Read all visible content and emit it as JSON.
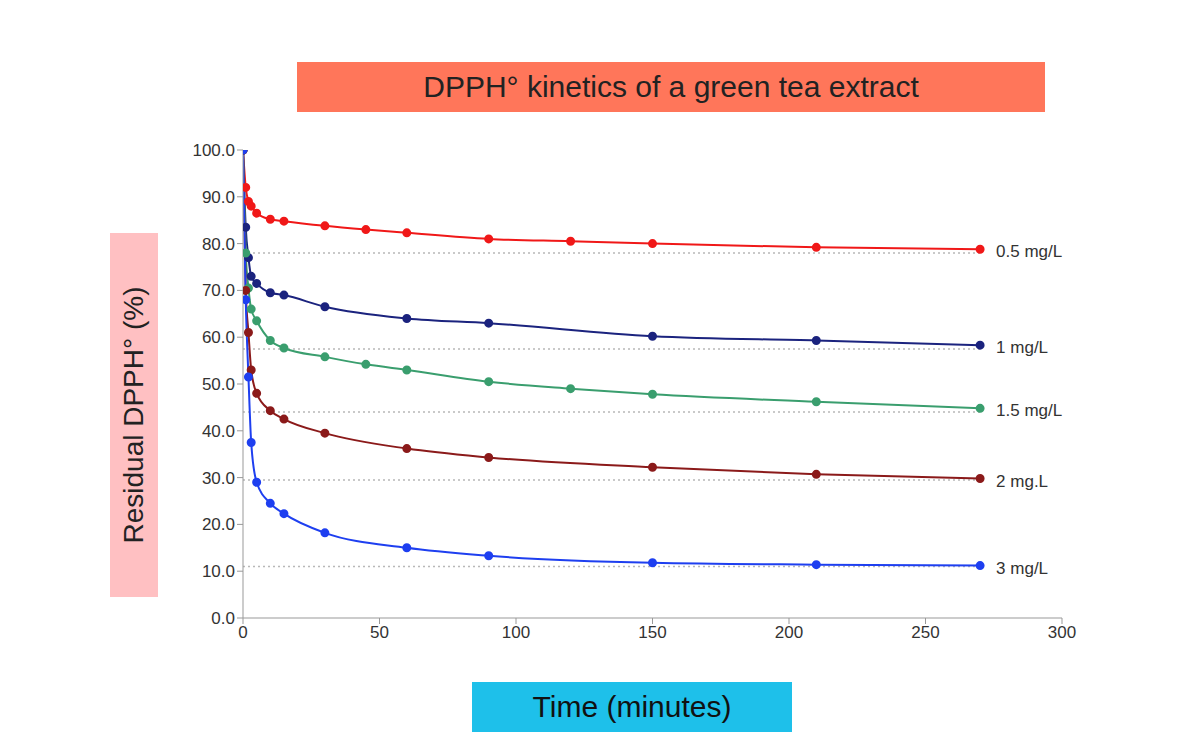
{
  "chart_data": {
    "type": "line",
    "title": "DPPH° kinetics of a green tea extract",
    "x_label": "Time (minutes)",
    "y_label": "Residual DPPH° (%)",
    "xlim": [
      0,
      300
    ],
    "xticks": [
      0,
      50,
      100,
      150,
      200,
      250,
      300
    ],
    "ylim": [
      0,
      100
    ],
    "yticks": [
      {
        "value": 0,
        "label": "0.0"
      },
      {
        "value": 10,
        "label": "10.0"
      },
      {
        "value": 20,
        "label": "20.0"
      },
      {
        "value": 30,
        "label": "30.0"
      },
      {
        "value": 40,
        "label": "40.0"
      },
      {
        "value": 50,
        "label": "50.0"
      },
      {
        "value": 60,
        "label": "60.0"
      },
      {
        "value": 70,
        "label": "70.0"
      },
      {
        "value": 80,
        "label": "80.0"
      },
      {
        "value": 90,
        "label": "90.0"
      },
      {
        "value": 100,
        "label": "100.0"
      }
    ],
    "grid": false,
    "marker": "circle",
    "line_style": "solid",
    "series": [
      {
        "name": "0.5 mg/L",
        "color": "#f01818",
        "plateau": 78,
        "x": [
          0,
          1,
          2,
          3,
          5,
          10,
          15,
          30,
          45,
          60,
          90,
          120,
          150,
          210,
          270
        ],
        "values": [
          100,
          92,
          89,
          88,
          86.5,
          85.2,
          84.8,
          83.8,
          83,
          82.3,
          81,
          80.5,
          80,
          79.2,
          78.8
        ]
      },
      {
        "name": "1 mg/L",
        "color": "#1b237e",
        "plateau": 57.5,
        "x": [
          0,
          1,
          2,
          3,
          5,
          10,
          15,
          30,
          60,
          90,
          150,
          210,
          270
        ],
        "values": [
          100,
          83.5,
          77,
          73,
          71.5,
          69.5,
          69,
          66.5,
          64,
          63,
          60.2,
          59.3,
          58.3
        ]
      },
      {
        "name": "1.5 mg/L",
        "color": "#3a9e6e",
        "plateau": 44,
        "x": [
          0,
          1,
          2,
          3,
          5,
          10,
          15,
          30,
          45,
          60,
          90,
          120,
          150,
          210,
          270
        ],
        "values": [
          100,
          78,
          70.5,
          66,
          63.5,
          59.3,
          57.7,
          55.8,
          54.2,
          53,
          50.5,
          49,
          47.8,
          46.2,
          44.8
        ]
      },
      {
        "name": "2 mg.L",
        "color": "#8b1a1a",
        "plateau": 29.5,
        "x": [
          0,
          1,
          2,
          3,
          5,
          10,
          15,
          30,
          60,
          90,
          150,
          210,
          270
        ],
        "values": [
          100,
          70,
          61,
          53,
          48,
          44.3,
          42.5,
          39.5,
          36.2,
          34.3,
          32.2,
          30.7,
          29.8
        ]
      },
      {
        "name": "3 mg/L",
        "color": "#1e3ff0",
        "plateau": 11,
        "x": [
          0,
          1,
          2,
          3,
          5,
          10,
          15,
          30,
          60,
          90,
          150,
          210,
          270
        ],
        "values": [
          100,
          68,
          51.5,
          37.5,
          29,
          24.5,
          22.3,
          18.2,
          15,
          13.3,
          11.8,
          11.4,
          11.2
        ]
      }
    ]
  }
}
